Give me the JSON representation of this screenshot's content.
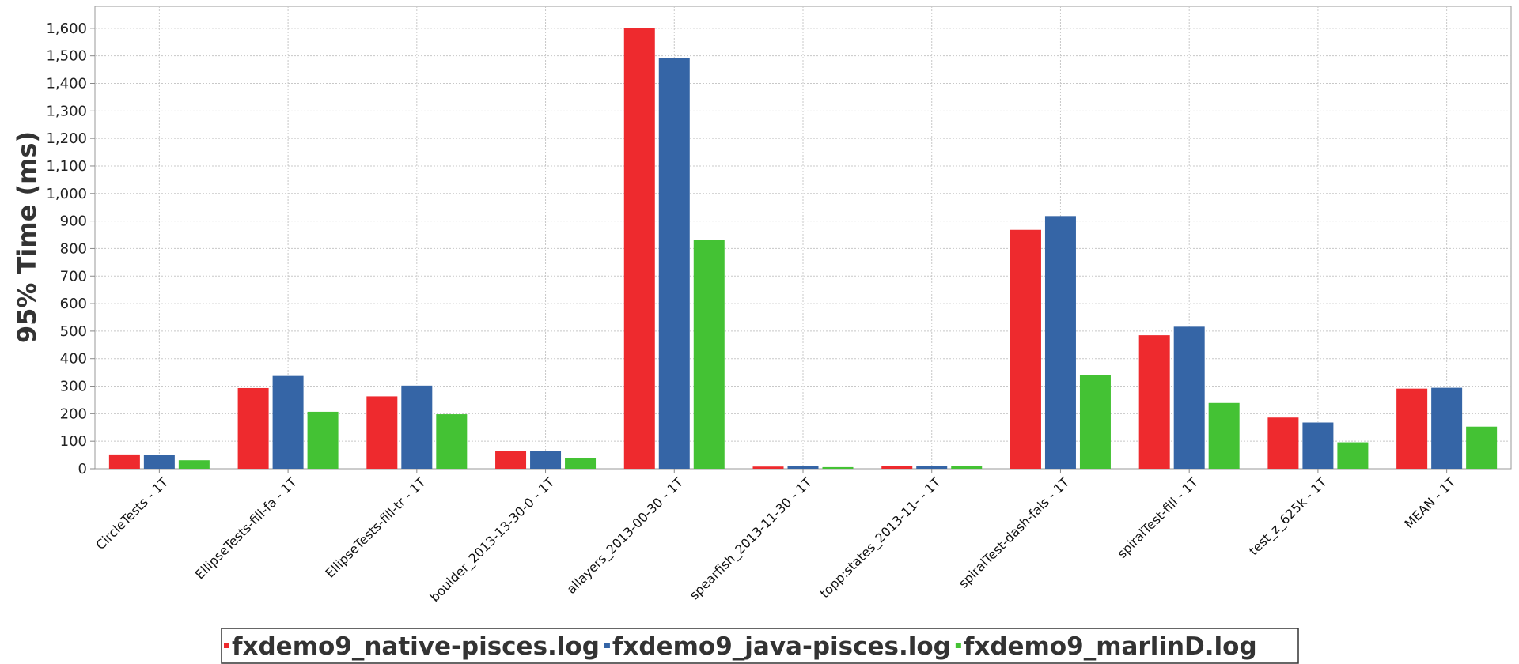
{
  "chart_data": {
    "type": "bar",
    "title": "",
    "xlabel": "",
    "ylabel": "95% Time (ms)",
    "ylim": [
      0,
      1680
    ],
    "yticks": [
      0,
      100,
      200,
      300,
      400,
      500,
      600,
      700,
      800,
      900,
      1000,
      1100,
      1200,
      1300,
      1400,
      1500,
      1600
    ],
    "ytick_labels": [
      "0",
      "100",
      "200",
      "300",
      "400",
      "500",
      "600",
      "700",
      "800",
      "900",
      "1,000",
      "1,100",
      "1,200",
      "1,300",
      "1,400",
      "1,500",
      "1,600"
    ],
    "grid": true,
    "legend_position": "bottom",
    "categories": [
      "CircleTests - 1T",
      "EllipseTests-fill-fa - 1T",
      "EllipseTests-fill-tr - 1T",
      "boulder_2013-13-30-0 - 1T",
      "allayers_2013-00-30 - 1T",
      "spearfish_2013-11-30 - 1T",
      "topp:states_2013-11- - 1T",
      "spiralTest-dash-fals - 1T",
      "spiralTest-fill - 1T",
      "test_z_625k - 1T",
      "MEAN - 1T"
    ],
    "series": [
      {
        "name": "fxdemo9_native-pisces.log",
        "color": "#ee2a2e",
        "values": [
          52,
          293,
          263,
          65,
          1602,
          8,
          10,
          868,
          485,
          186,
          291
        ]
      },
      {
        "name": "fxdemo9_java-pisces.log",
        "color": "#3565a6",
        "values": [
          50,
          337,
          302,
          65,
          1493,
          9,
          11,
          918,
          516,
          168,
          294
        ]
      },
      {
        "name": "fxdemo9_marlinD.log",
        "color": "#44c234",
        "values": [
          31,
          207,
          198,
          38,
          832,
          6,
          9,
          339,
          239,
          96,
          153
        ]
      }
    ]
  }
}
